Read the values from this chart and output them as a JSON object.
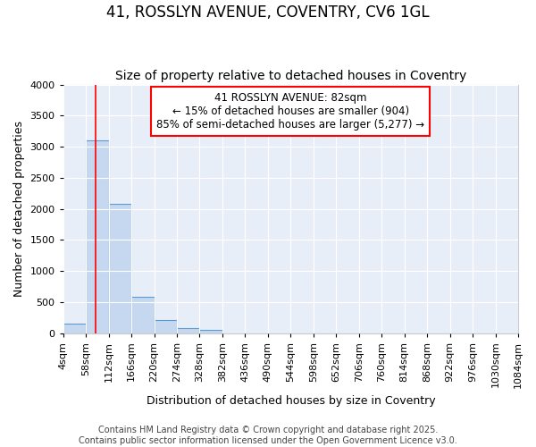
{
  "title": "41, ROSSLYN AVENUE, COVENTRY, CV6 1GL",
  "subtitle": "Size of property relative to detached houses in Coventry",
  "xlabel": "Distribution of detached houses by size in Coventry",
  "ylabel": "Number of detached properties",
  "bin_edges": [
    4,
    58,
    112,
    166,
    220,
    274,
    328,
    382,
    436,
    490,
    544,
    598,
    652,
    706,
    760,
    814,
    868,
    922,
    976,
    1030,
    1084
  ],
  "bar_heights": [
    150,
    3100,
    2075,
    580,
    215,
    75,
    50,
    0,
    0,
    0,
    0,
    0,
    0,
    0,
    0,
    0,
    0,
    0,
    0,
    0
  ],
  "bar_color": "#c5d8f0",
  "bar_edge_color": "#5b9bd5",
  "fig_background_color": "#ffffff",
  "axes_background_color": "#e8eef8",
  "grid_color": "#ffffff",
  "red_line_x": 82,
  "property_label": "41 ROSSLYN AVENUE: 82sqm",
  "annotation_line1": "← 15% of detached houses are smaller (904)",
  "annotation_line2": "85% of semi-detached houses are larger (5,277) →",
  "ylim": [
    0,
    4000
  ],
  "yticks": [
    0,
    500,
    1000,
    1500,
    2000,
    2500,
    3000,
    3500,
    4000
  ],
  "footnote1": "Contains HM Land Registry data © Crown copyright and database right 2025.",
  "footnote2": "Contains public sector information licensed under the Open Government Licence v3.0.",
  "title_fontsize": 12,
  "subtitle_fontsize": 10,
  "axis_label_fontsize": 9,
  "tick_fontsize": 8,
  "annotation_fontsize": 8.5,
  "footnote_fontsize": 7
}
